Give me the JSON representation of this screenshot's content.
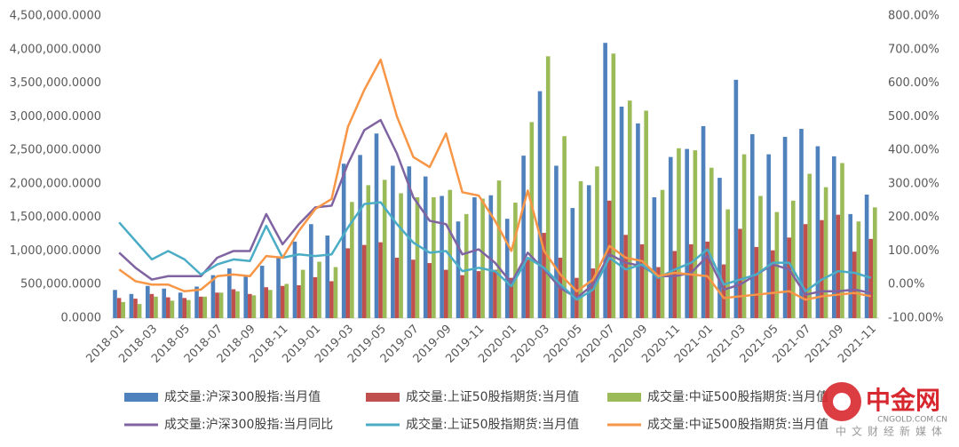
{
  "chart_data": {
    "type": "combo",
    "categories": [
      "2018-01",
      null,
      "2018-03",
      null,
      "2018-05",
      null,
      "2018-07",
      null,
      "2018-09",
      null,
      "2018-11",
      null,
      "2019-01",
      null,
      "2019-03",
      null,
      "2019-05",
      null,
      "2019-07",
      null,
      "2019-09",
      null,
      "2019-11",
      null,
      "2020-01",
      null,
      "2020-03",
      null,
      "2020-05",
      null,
      "2020-07",
      null,
      "2020-09",
      null,
      "2020-11",
      null,
      "2021-01",
      null,
      "2021-03",
      null,
      "2021-05",
      null,
      "2021-07",
      null,
      "2021-09",
      null,
      "2021-11"
    ],
    "series": [
      {
        "name": "成交量:沪深300股指:当月值",
        "type": "bar",
        "color": "#4f81bd",
        "values": [
          420000,
          360000,
          480000,
          440000,
          380000,
          470000,
          640000,
          740000,
          640000,
          780000,
          900000,
          1140000,
          1400000,
          1230000,
          2300000,
          2430000,
          2750000,
          2270000,
          2260000,
          2110000,
          1820000,
          1440000,
          1800000,
          1830000,
          1480000,
          2420000,
          3380000,
          2270000,
          1640000,
          1980000,
          4100000,
          3150000,
          2900000,
          1800000,
          2400000,
          2520000,
          2860000,
          2090000,
          3550000,
          2740000,
          2440000,
          2700000,
          2820000,
          2560000,
          2410000,
          1550000,
          1840000
        ]
      },
      {
        "name": "成交量:上证50股指期货:当月值",
        "type": "bar",
        "color": "#c0504d",
        "values": [
          300000,
          290000,
          360000,
          310000,
          300000,
          320000,
          380000,
          430000,
          360000,
          460000,
          480000,
          490000,
          610000,
          550000,
          1040000,
          1090000,
          1130000,
          900000,
          870000,
          820000,
          720000,
          640000,
          700000,
          720000,
          600000,
          870000,
          1270000,
          900000,
          600000,
          740000,
          1750000,
          1240000,
          1100000,
          760000,
          1000000,
          1100000,
          1140000,
          800000,
          1330000,
          1060000,
          1010000,
          1200000,
          1400000,
          1460000,
          1540000,
          990000,
          1180000
        ]
      },
      {
        "name": "成交量:中证500股指期货:当月值",
        "type": "bar",
        "color": "#9bbb59",
        "values": [
          240000,
          210000,
          320000,
          260000,
          270000,
          320000,
          380000,
          400000,
          340000,
          420000,
          510000,
          720000,
          840000,
          760000,
          1730000,
          1980000,
          2060000,
          1860000,
          1800000,
          1800000,
          1910000,
          1550000,
          1780000,
          2050000,
          1720000,
          2920000,
          3900000,
          2710000,
          2040000,
          2260000,
          3940000,
          3240000,
          3090000,
          1910000,
          2530000,
          2500000,
          2240000,
          1620000,
          2440000,
          1820000,
          1580000,
          1750000,
          2150000,
          1950000,
          2310000,
          1440000,
          1650000
        ]
      },
      {
        "name": "成交量:沪深300股指:当月同比",
        "type": "line",
        "axis": "y2",
        "color": "#8064a2",
        "values": [
          95,
          50,
          15,
          25,
          25,
          25,
          80,
          100,
          100,
          210,
          120,
          180,
          230,
          235,
          360,
          460,
          490,
          390,
          260,
          190,
          180,
          90,
          105,
          65,
          5,
          95,
          45,
          -10,
          -40,
          0,
          90,
          65,
          55,
          25,
          25,
          35,
          85,
          -15,
          0,
          30,
          60,
          45,
          -30,
          -20,
          -20,
          -15,
          -25
        ]
      },
      {
        "name": "成交量:上证50股指期货:当月值",
        "type": "line",
        "axis": "y2",
        "color": "#4bacc6",
        "values": [
          185,
          130,
          75,
          100,
          75,
          30,
          60,
          75,
          70,
          175,
          80,
          90,
          85,
          90,
          170,
          240,
          245,
          180,
          125,
          95,
          100,
          40,
          50,
          40,
          -5,
          80,
          50,
          0,
          -45,
          -15,
          80,
          45,
          60,
          20,
          45,
          65,
          105,
          0,
          15,
          30,
          65,
          65,
          -20,
          15,
          40,
          35,
          20
        ]
      },
      {
        "name": "成交量:中证500股指期货:当月值",
        "type": "line",
        "axis": "y2",
        "color": "#f79646",
        "values": [
          45,
          10,
          0,
          0,
          -20,
          -15,
          25,
          30,
          25,
          85,
          80,
          160,
          225,
          255,
          470,
          580,
          670,
          500,
          380,
          350,
          450,
          275,
          265,
          190,
          100,
          280,
          100,
          30,
          -20,
          15,
          115,
          80,
          70,
          25,
          35,
          30,
          25,
          -40,
          -35,
          -30,
          -25,
          -20,
          -45,
          -35,
          -30,
          -25,
          -35
        ]
      }
    ],
    "ylim": [
      0,
      4500000
    ],
    "yticks": [
      {
        "value": 0,
        "label": "0.0000"
      },
      {
        "value": 500000,
        "label": "500,000.0000"
      },
      {
        "value": 1000000,
        "label": "1,000,000.0000"
      },
      {
        "value": 1500000,
        "label": "1,500,000.0000"
      },
      {
        "value": 2000000,
        "label": "2,000,000.0000"
      },
      {
        "value": 2500000,
        "label": "2,500,000.0000"
      },
      {
        "value": 3000000,
        "label": "3,000,000.0000"
      },
      {
        "value": 3500000,
        "label": "3,500,000.0000"
      },
      {
        "value": 4000000,
        "label": "4,000,000.0000"
      },
      {
        "value": 4500000,
        "label": "4,500,000.0000"
      }
    ],
    "y2lim": [
      -100,
      800
    ],
    "y2ticks": [
      {
        "value": -100,
        "label": "-100.00%"
      },
      {
        "value": 0,
        "label": "0.00%"
      },
      {
        "value": 100,
        "label": "100.00%"
      },
      {
        "value": 200,
        "label": "200.00%"
      },
      {
        "value": 300,
        "label": "300.00%"
      },
      {
        "value": 400,
        "label": "400.00%"
      },
      {
        "value": 500,
        "label": "500.00%"
      },
      {
        "value": 600,
        "label": "600.00%"
      },
      {
        "value": 700,
        "label": "700.00%"
      },
      {
        "value": 800,
        "label": "800.00%"
      }
    ],
    "grid": false
  },
  "watermark": {
    "name": "中金网",
    "domain": "CNGOLD.COM.CN",
    "slogan": "中文财经新媒体"
  }
}
